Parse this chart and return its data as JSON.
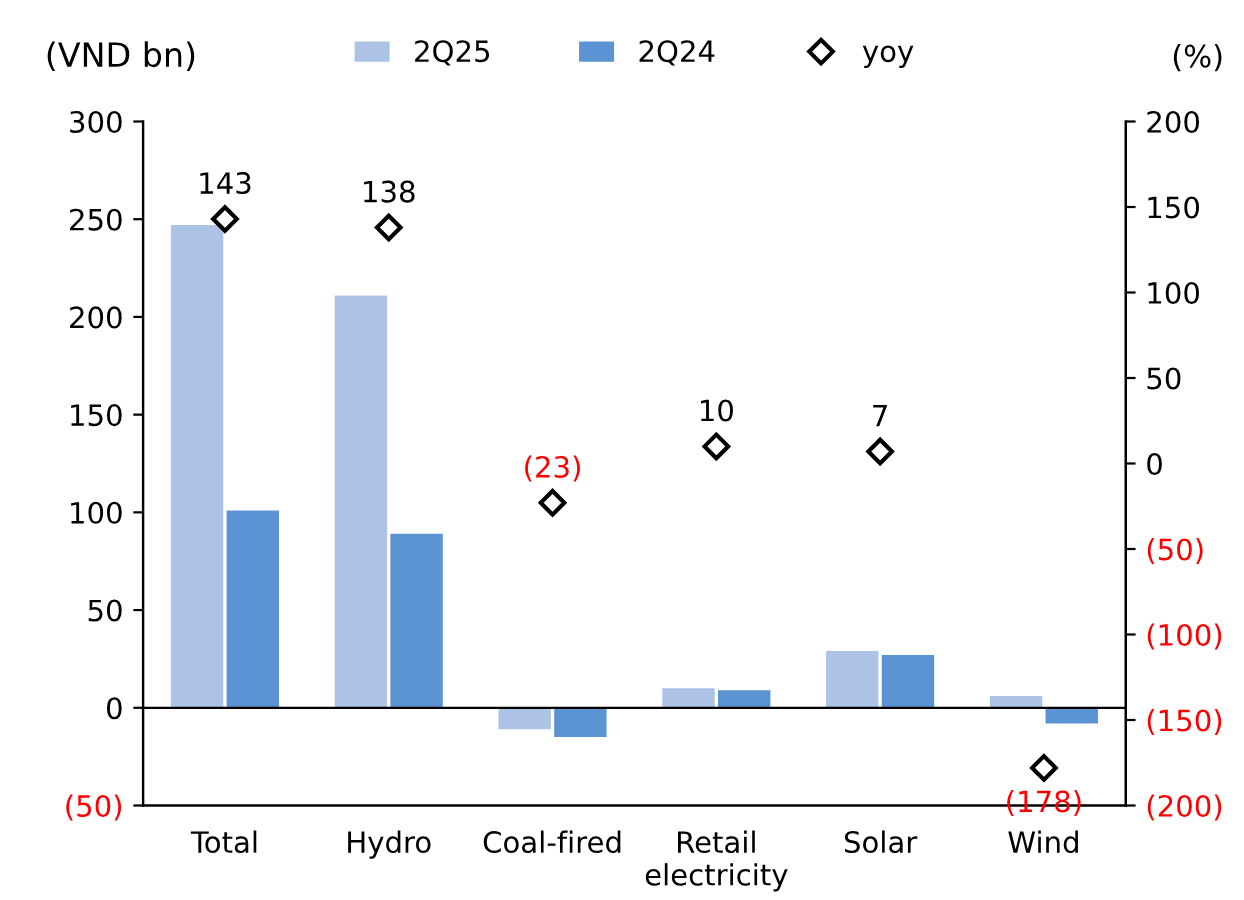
{
  "chart_data": {
    "type": "bar",
    "ylabel": "(VND bn)",
    "y2label": "(%)",
    "categories": [
      "Total",
      "Hydro",
      "Coal-fired",
      "Retail\nelectricity",
      "Solar",
      "Wind"
    ],
    "series": [
      {
        "name": "2Q25",
        "color": "#adc3e6",
        "values": [
          247,
          211,
          -11,
          10,
          29,
          6
        ]
      },
      {
        "name": "2Q24",
        "color": "#5b93d3",
        "values": [
          101,
          89,
          -15,
          9,
          27,
          -8
        ]
      },
      {
        "name": "yoy",
        "type": "scatter",
        "axis": "y2",
        "color": "#ffffff",
        "marker": "diamond",
        "values": [
          143,
          138,
          -23,
          10,
          7,
          -178
        ],
        "value_labels": [
          "143",
          "138",
          "(23)",
          "10",
          "7",
          "(178)"
        ]
      }
    ],
    "ylim": [
      -50,
      300
    ],
    "yticks": [
      {
        "value": -50,
        "label": "(50)"
      },
      0,
      50,
      100,
      150,
      200,
      250,
      300
    ],
    "y2lim": [
      -200,
      200
    ],
    "y2ticks": [
      {
        "value": -200,
        "label": "(200)"
      },
      {
        "value": -150,
        "label": "(150)"
      },
      {
        "value": -100,
        "label": "(100)"
      },
      {
        "value": -50,
        "label": "(50)"
      },
      0,
      50,
      100,
      150,
      200
    ],
    "legend": "top"
  }
}
